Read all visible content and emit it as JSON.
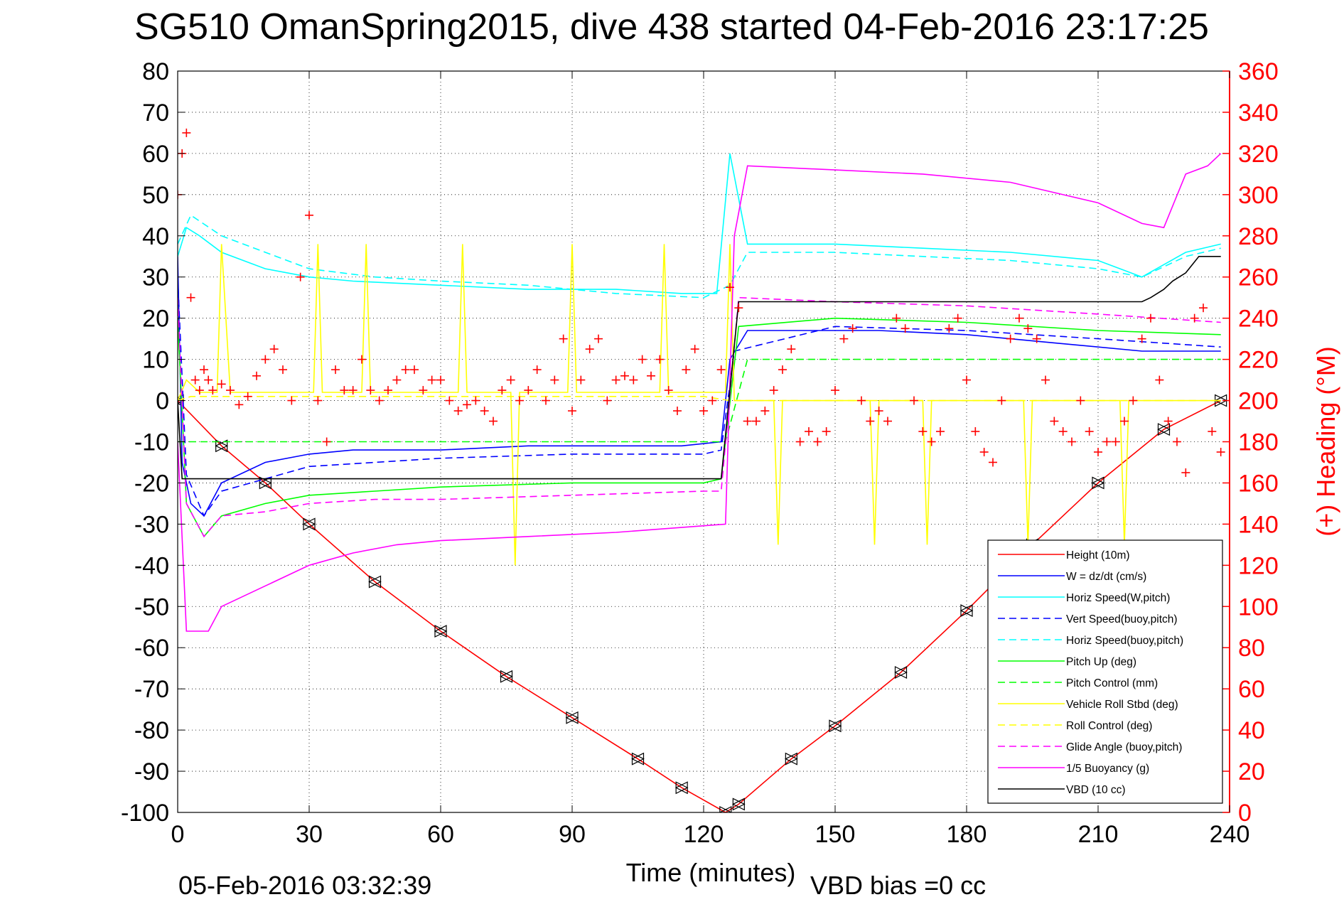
{
  "title": "SG510 OmanSpring2015, dive 438 started 04-Feb-2016 23:17:25",
  "footer_left": "05-Feb-2016 03:32:39",
  "footer_right": "VBD bias =0 cc",
  "colors": {
    "height": "#ff0000",
    "w": "#0000ff",
    "horiz_speed": "#00ffff",
    "pitch": "#00ff00",
    "roll": "#ffff00",
    "glide": "#ff00ff",
    "buoyancy": "#ff00ff",
    "vbd": "#000000",
    "heading": "#ff0000",
    "right_axis": "#ff0000"
  },
  "chart_data": {
    "type": "line",
    "xlabel": "Time (minutes)",
    "ylabel_right": "(+) Heading (°M)",
    "xlim": [
      0,
      240
    ],
    "ylim_left": [
      -100,
      80
    ],
    "ylim_right": [
      0,
      360
    ],
    "xticks": [
      "0",
      "30",
      "60",
      "90",
      "120",
      "150",
      "180",
      "210",
      "240"
    ],
    "yticks_left": [
      "80",
      "70",
      "60",
      "50",
      "40",
      "30",
      "20",
      "10",
      "0",
      "-10",
      "-20",
      "-30",
      "-40",
      "-50",
      "-60",
      "-70",
      "-80",
      "-90",
      "-100"
    ],
    "yticks_right": [
      "360",
      "340",
      "320",
      "300",
      "280",
      "260",
      "240",
      "220",
      "200",
      "180",
      "160",
      "140",
      "120",
      "100",
      "80",
      "60",
      "40",
      "20",
      "0"
    ],
    "grid": true,
    "legend_position": "bottom-right",
    "series": [
      {
        "name": "Height (10m)",
        "style": "solid",
        "color": "#ff0000",
        "markers": "triangle",
        "x": [
          0,
          10,
          20,
          30,
          45,
          60,
          75,
          90,
          105,
          115,
          125,
          128,
          140,
          150,
          165,
          180,
          195,
          210,
          225,
          238
        ],
        "y": [
          0,
          -11,
          -20,
          -30,
          -44,
          -56,
          -67,
          -77,
          -87,
          -94,
          -100,
          -98,
          -87,
          -79,
          -66,
          -51,
          -35,
          -20,
          -7,
          0
        ]
      },
      {
        "name": "W = dz/dt (cm/s)",
        "style": "solid",
        "color": "#0000ff",
        "x": [
          0,
          1,
          3,
          6,
          10,
          20,
          30,
          40,
          60,
          80,
          100,
          115,
          124,
          126,
          130,
          140,
          160,
          180,
          200,
          220,
          230,
          238
        ],
        "y": [
          35,
          -15,
          -25,
          -28,
          -20,
          -15,
          -13,
          -12,
          -12,
          -11,
          -11,
          -11,
          -10,
          10,
          17,
          17,
          17,
          16,
          14,
          12,
          12,
          12
        ]
      },
      {
        "name": "Horiz Speed(W,pitch)",
        "style": "solid",
        "color": "#00ffff",
        "x": [
          0,
          2,
          5,
          10,
          20,
          30,
          40,
          60,
          80,
          100,
          115,
          123,
          126,
          130,
          150,
          170,
          190,
          210,
          220,
          225,
          230,
          238
        ],
        "y": [
          35,
          42,
          40,
          36,
          32,
          30,
          29,
          28,
          27,
          27,
          26,
          26,
          60,
          38,
          38,
          37,
          36,
          34,
          30,
          33,
          36,
          38
        ]
      },
      {
        "name": "Vert Speed(buoy,pitch)",
        "style": "dashed",
        "color": "#0000ff",
        "x": [
          0,
          2,
          6,
          10,
          30,
          60,
          90,
          120,
          124,
          127,
          150,
          180,
          210,
          238
        ],
        "y": [
          30,
          -18,
          -28,
          -22,
          -16,
          -14,
          -13,
          -13,
          -12,
          12,
          18,
          17,
          15,
          13
        ]
      },
      {
        "name": "Horiz Speed(buoy,pitch)",
        "style": "dashed",
        "color": "#00ffff",
        "x": [
          0,
          3,
          10,
          20,
          30,
          45,
          60,
          80,
          100,
          120,
          126,
          130,
          150,
          170,
          190,
          210,
          220,
          230,
          238
        ],
        "y": [
          38,
          45,
          40,
          36,
          32,
          30,
          29,
          28,
          26,
          25,
          28,
          36,
          36,
          35,
          34,
          32,
          30,
          35,
          37
        ]
      },
      {
        "name": "Pitch Up (deg)",
        "style": "solid",
        "color": "#00ff00",
        "x": [
          0,
          2,
          6,
          10,
          20,
          30,
          45,
          60,
          90,
          120,
          124,
          128,
          150,
          180,
          210,
          238
        ],
        "y": [
          20,
          -25,
          -33,
          -28,
          -25,
          -23,
          -22,
          -21,
          -20,
          -20,
          -19,
          18,
          20,
          19,
          17,
          16
        ]
      },
      {
        "name": "Pitch Control (mm)",
        "style": "dashed",
        "color": "#00ff00",
        "x": [
          0,
          3,
          30,
          60,
          90,
          120,
          125,
          130,
          150,
          180,
          210,
          238
        ],
        "y": [
          -10,
          -10,
          -10,
          -10,
          -10,
          -10,
          -10,
          10,
          10,
          10,
          10,
          10
        ]
      },
      {
        "name": "Vehicle Roll Stbd (deg)",
        "style": "solid",
        "color": "#ffff00",
        "x": [
          0,
          2,
          5,
          9,
          10,
          12,
          31,
          32,
          33,
          42,
          43,
          44,
          64,
          65,
          66,
          76,
          77,
          78,
          89,
          90,
          91,
          110,
          111,
          112,
          125,
          126,
          127,
          136,
          137,
          138,
          158,
          159,
          160,
          170,
          171,
          172,
          193,
          194,
          195,
          215,
          216,
          217,
          238
        ],
        "y": [
          0,
          5,
          2,
          2,
          38,
          2,
          2,
          38,
          2,
          2,
          38,
          2,
          2,
          38,
          2,
          2,
          -40,
          2,
          2,
          38,
          2,
          2,
          38,
          2,
          2,
          38,
          0,
          0,
          -35,
          0,
          0,
          -35,
          0,
          0,
          -35,
          0,
          0,
          -35,
          0,
          0,
          -35,
          0,
          0
        ]
      },
      {
        "name": "Roll Control (deg)",
        "style": "dashed",
        "color": "#ffff00",
        "x": [
          0,
          3,
          30,
          60,
          90,
          120,
          126,
          150,
          180,
          210,
          238
        ],
        "y": [
          0,
          1,
          1,
          1,
          1,
          1,
          0,
          0,
          0,
          0,
          0
        ]
      },
      {
        "name": "Glide Angle (buoy,pitch)",
        "style": "dashed",
        "color": "#ff00ff",
        "x": [
          0,
          2,
          6,
          10,
          20,
          30,
          45,
          60,
          90,
          120,
          124,
          128,
          150,
          180,
          210,
          238
        ],
        "y": [
          25,
          -25,
          -33,
          -28,
          -27,
          -25,
          -24,
          -24,
          -23,
          -22,
          -22,
          25,
          24,
          23,
          21,
          19
        ]
      },
      {
        "name": "1/5 Buoyancy (g)",
        "style": "solid",
        "color": "#ff00ff",
        "x": [
          0,
          2,
          7,
          10,
          20,
          30,
          40,
          50,
          60,
          80,
          100,
          125,
          127,
          130,
          150,
          170,
          190,
          210,
          220,
          225,
          230,
          235,
          238
        ],
        "y": [
          -10,
          -56,
          -56,
          -50,
          -45,
          -40,
          -37,
          -35,
          -34,
          -33,
          -32,
          -30,
          40,
          57,
          56,
          55,
          53,
          48,
          43,
          42,
          55,
          57,
          60
        ]
      },
      {
        "name": "VBD (10 cc)",
        "style": "solid",
        "color": "#000000",
        "x": [
          0,
          1,
          3,
          120,
          124,
          128,
          130,
          220,
          222,
          225,
          227,
          230,
          233,
          238
        ],
        "y": [
          0,
          -19,
          -19,
          -19,
          -19,
          24,
          24,
          24,
          25,
          27,
          29,
          31,
          35,
          35
        ]
      }
    ],
    "heading": {
      "name": "(+) Heading (°M)",
      "axis": "right",
      "marker": "+",
      "color": "#ff0000",
      "x": [
        0,
        1,
        2,
        3,
        4,
        5,
        6,
        7,
        8,
        10,
        12,
        14,
        16,
        18,
        20,
        22,
        24,
        26,
        28,
        30,
        32,
        34,
        36,
        38,
        40,
        42,
        44,
        46,
        48,
        50,
        52,
        54,
        56,
        58,
        60,
        62,
        64,
        66,
        68,
        70,
        72,
        74,
        76,
        78,
        80,
        82,
        84,
        86,
        88,
        90,
        92,
        94,
        96,
        98,
        100,
        102,
        104,
        106,
        108,
        110,
        112,
        114,
        116,
        118,
        120,
        122,
        124,
        126,
        128,
        130,
        132,
        134,
        136,
        138,
        140,
        142,
        144,
        146,
        148,
        150,
        152,
        154,
        156,
        158,
        160,
        162,
        164,
        166,
        168,
        170,
        172,
        174,
        176,
        178,
        180,
        182,
        184,
        186,
        188,
        190,
        192,
        194,
        196,
        198,
        200,
        202,
        204,
        206,
        208,
        210,
        212,
        214,
        216,
        218,
        220,
        222,
        224,
        226,
        228,
        230,
        232,
        234,
        236,
        238
      ],
      "y": [
        300,
        320,
        330,
        250,
        210,
        205,
        215,
        210,
        205,
        208,
        205,
        198,
        202,
        212,
        220,
        225,
        215,
        200,
        260,
        290,
        200,
        180,
        215,
        205,
        205,
        220,
        205,
        200,
        205,
        210,
        215,
        215,
        205,
        210,
        210,
        200,
        195,
        198,
        200,
        195,
        190,
        205,
        210,
        200,
        205,
        215,
        200,
        210,
        230,
        195,
        210,
        225,
        230,
        200,
        210,
        212,
        210,
        220,
        212,
        220,
        205,
        195,
        215,
        225,
        195,
        200,
        215,
        255,
        245,
        190,
        190,
        195,
        205,
        215,
        225,
        180,
        185,
        180,
        185,
        205,
        230,
        235,
        200,
        190,
        195,
        190,
        240,
        235,
        200,
        185,
        180,
        185,
        235,
        240,
        210,
        185,
        175,
        170,
        200,
        230,
        240,
        235,
        230,
        210,
        190,
        185,
        180,
        200,
        185,
        175,
        180,
        180,
        190,
        200,
        230,
        240,
        210,
        190,
        180,
        165,
        240,
        245,
        185,
        175
      ]
    }
  }
}
